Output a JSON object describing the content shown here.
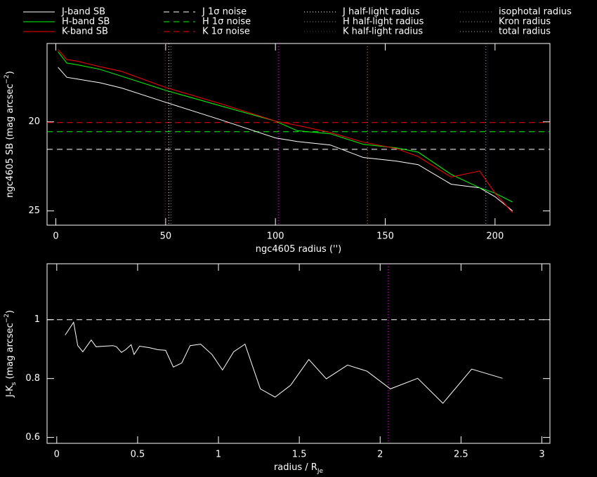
{
  "chart_data": [
    {
      "type": "line",
      "yinvert": true,
      "xlabel": [
        {
          "text": "ngc4605 radius ('')"
        }
      ],
      "ylabel": [
        {
          "text": "ngc4605 SB (mag arcsec"
        },
        {
          "text": "−2",
          "shift": "sup"
        },
        {
          "text": ")"
        }
      ],
      "xlim": [
        -4,
        225
      ],
      "xticks": [
        0,
        50,
        100,
        150,
        200
      ],
      "ylim": [
        15.6,
        25.8
      ],
      "yticks": [
        20,
        25
      ],
      "series": [
        {
          "name": "J-band SB",
          "color": "#ffffff",
          "x": [
            1,
            5,
            10,
            20,
            30,
            50,
            75,
            100,
            110,
            125,
            140,
            155,
            165,
            180,
            193,
            200,
            208
          ],
          "values": [
            16.93,
            17.5,
            17.6,
            17.8,
            18.1,
            18.9,
            19.88,
            20.9,
            21.1,
            21.3,
            22.0,
            22.2,
            22.4,
            23.5,
            23.7,
            24.2,
            25.0
          ]
        },
        {
          "name": "H-band SB",
          "color": "#00ff00",
          "x": [
            1,
            5,
            10,
            20,
            30,
            50,
            75,
            100,
            110,
            125,
            140,
            155,
            165,
            180,
            193,
            200,
            208
          ],
          "values": [
            16.06,
            16.7,
            16.8,
            17.05,
            17.44,
            18.23,
            19.1,
            19.96,
            20.5,
            20.67,
            21.26,
            21.46,
            21.7,
            22.95,
            23.7,
            24.0,
            24.5
          ]
        },
        {
          "name": "K-band SB",
          "color": "#ff0000",
          "x": [
            1,
            5,
            10,
            20,
            30,
            50,
            75,
            100,
            110,
            125,
            140,
            155,
            165,
            180,
            193,
            200,
            208
          ],
          "values": [
            15.94,
            16.5,
            16.6,
            16.9,
            17.17,
            18.07,
            18.98,
            19.96,
            20.2,
            20.6,
            21.14,
            21.5,
            21.95,
            23.1,
            22.76,
            24.0,
            25.1
          ]
        }
      ],
      "hlines": [
        {
          "name": "J 1σ noise",
          "color": "#ffffff",
          "value": 21.54,
          "dash": "dashed"
        },
        {
          "name": "H 1σ noise",
          "color": "#00ff00",
          "value": 20.55,
          "dash": "dashed"
        },
        {
          "name": "K 1σ noise",
          "color": "#ff0000",
          "value": 20.04,
          "dash": "dashed"
        }
      ],
      "vlines": [
        {
          "name": "J half-light radius",
          "color": "#ffffff",
          "value": 51.4,
          "dash": "dotted"
        },
        {
          "name": "H half-light radius",
          "color": "#00ff00",
          "value": 52.4,
          "dash": "dotted"
        },
        {
          "name": "K half-light radius",
          "color": "#ff0000",
          "value": 49.8,
          "dash": "dotted"
        },
        {
          "name": "isophotal radius",
          "color": "#ff00ff",
          "value": 101.3,
          "dash": "dotted"
        },
        {
          "name": "Kron radius",
          "color": "#ff8000",
          "value": 141.9,
          "dash": "dotted"
        },
        {
          "name": "total radius",
          "color": "#00ffff",
          "value": 195.8,
          "dash": "dotted"
        }
      ]
    },
    {
      "type": "line",
      "xlabel": [
        {
          "text": "radius / R"
        },
        {
          "text": "Je",
          "shift": "sub"
        }
      ],
      "ylabel": [
        {
          "text": "J-K"
        },
        {
          "text": "s",
          "shift": "sub"
        },
        {
          "text": " (mag arcsec"
        },
        {
          "text": "−2",
          "shift": "sup"
        },
        {
          "text": ")"
        }
      ],
      "xlim": [
        -0.06,
        3.05
      ],
      "xticks": [
        0,
        0.5,
        1,
        1.5,
        2,
        2.5,
        3
      ],
      "ylim": [
        0.58,
        1.19
      ],
      "yticks": [
        0.6,
        0.8,
        1
      ],
      "series": [
        {
          "color": "#ffffff",
          "x": [
            0.052,
            0.104,
            0.13,
            0.161,
            0.213,
            0.243,
            0.295,
            0.347,
            0.369,
            0.4,
            0.426,
            0.46,
            0.478,
            0.512,
            0.573,
            0.625,
            0.673,
            0.721,
            0.773,
            0.825,
            0.89,
            0.96,
            1.025,
            1.094,
            1.164,
            1.259,
            1.35,
            1.446,
            1.559,
            1.667,
            1.798,
            1.919,
            2.063,
            2.232,
            2.388,
            2.566,
            2.757
          ],
          "values": [
            0.948,
            0.991,
            0.912,
            0.891,
            0.931,
            0.908,
            0.91,
            0.912,
            0.908,
            0.889,
            0.898,
            0.915,
            0.882,
            0.91,
            0.905,
            0.898,
            0.896,
            0.839,
            0.853,
            0.912,
            0.917,
            0.882,
            0.829,
            0.891,
            0.917,
            0.765,
            0.737,
            0.777,
            0.865,
            0.799,
            0.846,
            0.825,
            0.765,
            0.801,
            0.716,
            0.832,
            0.801
          ]
        }
      ],
      "hlines": [
        {
          "color": "#ffffff",
          "value": 1,
          "dash": "dashed"
        }
      ],
      "vlines": [
        {
          "color": "#ff00ff",
          "value": 2.05,
          "dash": "dotted"
        }
      ]
    }
  ]
}
